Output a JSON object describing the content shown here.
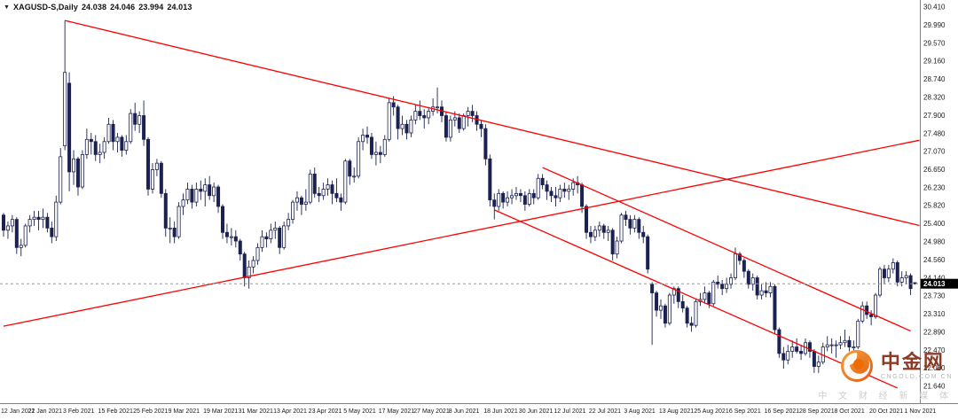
{
  "window": {
    "symbol_period": "XAGUSD-S,Daily",
    "open": "24.038",
    "high": "24.046",
    "low": "23.994",
    "close": "24.013"
  },
  "chart_data": {
    "type": "candlestick",
    "symbol": "XAGUSD-S",
    "timeframe": "Daily",
    "y_axis": {
      "min": 21.64,
      "max": 30.41,
      "labels": [
        "30.410",
        "29.990",
        "29.570",
        "29.160",
        "28.740",
        "28.320",
        "27.900",
        "27.480",
        "27.070",
        "26.650",
        "26.230",
        "25.820",
        "25.400",
        "24.980",
        "24.560",
        "24.140",
        "23.730",
        "23.310",
        "22.890",
        "22.470",
        "22.060",
        "21.640"
      ]
    },
    "x_axis": {
      "label_every_n_bars": 8,
      "labels": [
        "12 Jan 2021",
        "22 Jan 2021",
        "3 Feb 2021",
        "15 Feb 2021",
        "25 Feb 2021",
        "9 Mar 2021",
        "19 Mar 2021",
        "31 Mar 2021",
        "13 Apr 2021",
        "23 Apr 2021",
        "5 May 2021",
        "17 May 2021",
        "27 May 2021",
        "8 Jun 2021",
        "18 Jun 2021",
        "30 Jun 2021",
        "12 Jul 2021",
        "22 Jul 2021",
        "3 Aug 2021",
        "13 Aug 2021",
        "25 Aug 2021",
        "6 Sep 2021",
        "16 Sep 2021",
        "28 Sep 2021",
        "8 Oct 2021",
        "20 Oct 2021",
        "1 Nov 2021"
      ]
    },
    "bid": {
      "price": 24.013,
      "label": "24.013"
    },
    "trendlines": [
      {
        "name": "descending-resistance",
        "from": {
          "bar": 14,
          "price": 30.1
        },
        "to": {
          "bar": 209,
          "price": 25.36
        }
      },
      {
        "name": "ascending-support",
        "from": {
          "bar": 0,
          "price": 23.03
        },
        "to": {
          "bar": 209,
          "price": 27.33
        }
      },
      {
        "name": "channel-upper",
        "from": {
          "bar": 123,
          "price": 26.7
        },
        "to": {
          "bar": 207,
          "price": 22.92
        }
      },
      {
        "name": "channel-lower",
        "from": {
          "bar": 112,
          "price": 25.72
        },
        "to": {
          "bar": 204,
          "price": 21.6
        }
      }
    ],
    "candles": [
      [
        25.6,
        25.65,
        25.1,
        25.25
      ],
      [
        25.25,
        25.45,
        25.05,
        25.35
      ],
      [
        25.35,
        25.6,
        25.2,
        25.5
      ],
      [
        25.5,
        25.55,
        24.7,
        24.85
      ],
      [
        24.85,
        25.05,
        24.65,
        24.9
      ],
      [
        24.9,
        25.4,
        24.85,
        25.35
      ],
      [
        25.35,
        25.6,
        25.2,
        25.5
      ],
      [
        25.5,
        25.7,
        25.35,
        25.55
      ],
      [
        25.55,
        25.7,
        25.25,
        25.5
      ],
      [
        25.5,
        25.75,
        25.3,
        25.55
      ],
      [
        25.55,
        25.65,
        25.2,
        25.3
      ],
      [
        25.3,
        25.45,
        24.95,
        25.1
      ],
      [
        25.1,
        26.05,
        25.0,
        25.9
      ],
      [
        25.9,
        27.15,
        25.85,
        26.95
      ],
      [
        27.2,
        30.1,
        27.1,
        28.9
      ],
      [
        28.65,
        28.9,
        26.15,
        26.6
      ],
      [
        26.6,
        27.1,
        26.3,
        26.9
      ],
      [
        26.9,
        26.95,
        26.05,
        26.25
      ],
      [
        26.25,
        27.1,
        26.2,
        27.0
      ],
      [
        27.0,
        27.6,
        26.9,
        27.35
      ],
      [
        27.35,
        27.5,
        27.0,
        27.3
      ],
      [
        27.3,
        27.45,
        26.85,
        27.0
      ],
      [
        27.0,
        27.25,
        26.8,
        27.05
      ],
      [
        27.05,
        27.4,
        26.9,
        27.3
      ],
      [
        27.3,
        27.85,
        27.25,
        27.7
      ],
      [
        27.7,
        27.8,
        27.1,
        27.3
      ],
      [
        27.3,
        27.5,
        27.05,
        27.4
      ],
      [
        27.4,
        27.45,
        26.95,
        27.1
      ],
      [
        27.1,
        27.45,
        27.0,
        27.3
      ],
      [
        27.3,
        28.05,
        27.25,
        27.95
      ],
      [
        27.95,
        28.2,
        27.55,
        27.7
      ],
      [
        27.7,
        28.0,
        27.5,
        27.9
      ],
      [
        27.9,
        28.25,
        27.2,
        27.35
      ],
      [
        27.35,
        27.4,
        26.05,
        26.2
      ],
      [
        26.2,
        26.8,
        26.1,
        26.65
      ],
      [
        26.65,
        26.9,
        26.5,
        26.8
      ],
      [
        26.8,
        26.85,
        26.0,
        26.1
      ],
      [
        26.1,
        26.2,
        25.1,
        25.3
      ],
      [
        25.3,
        25.55,
        24.95,
        25.3
      ],
      [
        25.3,
        25.45,
        24.95,
        25.1
      ],
      [
        25.1,
        25.9,
        25.05,
        25.8
      ],
      [
        25.8,
        26.1,
        25.6,
        25.95
      ],
      [
        25.95,
        26.35,
        25.85,
        26.2
      ],
      [
        26.2,
        26.3,
        25.75,
        25.9
      ],
      [
        25.9,
        26.35,
        25.8,
        26.2
      ],
      [
        26.2,
        26.4,
        25.95,
        26.15
      ],
      [
        26.15,
        26.45,
        25.8,
        26.3
      ],
      [
        26.3,
        26.5,
        25.95,
        26.05
      ],
      [
        26.05,
        26.35,
        25.9,
        26.25
      ],
      [
        26.25,
        26.3,
        25.65,
        25.8
      ],
      [
        25.8,
        25.85,
        25.05,
        25.2
      ],
      [
        25.2,
        25.4,
        24.95,
        25.1
      ],
      [
        25.1,
        25.3,
        24.9,
        25.1
      ],
      [
        25.1,
        25.25,
        24.85,
        25.0
      ],
      [
        25.0,
        25.05,
        24.55,
        24.7
      ],
      [
        24.7,
        24.75,
        23.95,
        24.15
      ],
      [
        24.15,
        24.55,
        23.9,
        24.4
      ],
      [
        24.4,
        24.65,
        24.25,
        24.55
      ],
      [
        24.55,
        24.95,
        24.45,
        24.85
      ],
      [
        24.85,
        25.25,
        24.75,
        25.1
      ],
      [
        25.1,
        25.2,
        24.85,
        25.05
      ],
      [
        25.05,
        25.4,
        24.95,
        25.25
      ],
      [
        25.25,
        25.45,
        25.05,
        25.3
      ],
      [
        25.3,
        25.35,
        24.7,
        24.85
      ],
      [
        24.85,
        25.45,
        24.8,
        25.35
      ],
      [
        25.35,
        25.65,
        25.25,
        25.5
      ],
      [
        25.5,
        25.95,
        25.4,
        25.9
      ],
      [
        25.9,
        26.15,
        25.7,
        26.0
      ],
      [
        26.0,
        26.05,
        25.6,
        25.85
      ],
      [
        25.85,
        26.2,
        25.7,
        25.9
      ],
      [
        25.9,
        26.65,
        25.85,
        26.55
      ],
      [
        26.55,
        26.7,
        26.0,
        26.1
      ],
      [
        26.1,
        26.25,
        25.9,
        26.05
      ],
      [
        26.05,
        26.35,
        25.95,
        26.2
      ],
      [
        26.2,
        26.45,
        26.05,
        26.3
      ],
      [
        26.3,
        26.4,
        25.85,
        26.1
      ],
      [
        26.1,
        26.45,
        25.9,
        26.0
      ],
      [
        26.0,
        26.1,
        25.7,
        25.9
      ],
      [
        25.9,
        26.9,
        25.85,
        26.85
      ],
      [
        26.85,
        26.9,
        26.3,
        26.5
      ],
      [
        26.5,
        26.7,
        26.35,
        26.5
      ],
      [
        26.5,
        27.4,
        26.45,
        27.3
      ],
      [
        27.3,
        27.6,
        27.1,
        27.45
      ],
      [
        27.45,
        27.65,
        27.25,
        27.4
      ],
      [
        27.4,
        27.5,
        26.9,
        27.0
      ],
      [
        27.0,
        27.3,
        26.75,
        27.05
      ],
      [
        27.05,
        27.2,
        26.8,
        27.0
      ],
      [
        27.0,
        27.45,
        26.95,
        27.35
      ],
      [
        27.35,
        28.3,
        27.3,
        28.2
      ],
      [
        28.2,
        28.35,
        27.9,
        28.1
      ],
      [
        28.1,
        28.15,
        27.35,
        27.6
      ],
      [
        27.6,
        27.9,
        27.45,
        27.7
      ],
      [
        27.7,
        27.8,
        27.35,
        27.5
      ],
      [
        27.5,
        27.9,
        27.4,
        27.8
      ],
      [
        27.8,
        28.15,
        27.7,
        28.0
      ],
      [
        28.0,
        28.25,
        27.8,
        27.9
      ],
      [
        27.9,
        28.05,
        27.6,
        27.85
      ],
      [
        27.85,
        28.1,
        27.7,
        28.0
      ],
      [
        28.0,
        28.3,
        27.9,
        28.1
      ],
      [
        28.1,
        28.55,
        27.95,
        28.1
      ],
      [
        28.1,
        28.25,
        27.75,
        27.9
      ],
      [
        27.9,
        28.0,
        27.3,
        27.4
      ],
      [
        27.4,
        27.9,
        27.3,
        27.8
      ],
      [
        27.8,
        28.0,
        27.65,
        27.85
      ],
      [
        27.85,
        27.95,
        27.5,
        27.6
      ],
      [
        27.6,
        27.95,
        27.55,
        27.9
      ],
      [
        27.9,
        28.1,
        27.65,
        28.0
      ],
      [
        28.0,
        28.15,
        27.75,
        27.9
      ],
      [
        27.9,
        28.0,
        27.55,
        27.7
      ],
      [
        27.7,
        27.8,
        27.4,
        27.6
      ],
      [
        27.6,
        27.7,
        26.75,
        26.9
      ],
      [
        26.9,
        27.0,
        25.8,
        25.95
      ],
      [
        25.95,
        26.1,
        25.5,
        25.8
      ],
      [
        25.8,
        26.2,
        25.7,
        26.1
      ],
      [
        26.1,
        26.15,
        25.75,
        25.9
      ],
      [
        25.9,
        26.15,
        25.8,
        26.0
      ],
      [
        26.0,
        26.2,
        25.85,
        26.05
      ],
      [
        26.05,
        26.25,
        25.95,
        26.1
      ],
      [
        26.1,
        26.2,
        25.9,
        26.05
      ],
      [
        26.05,
        26.15,
        25.7,
        25.85
      ],
      [
        25.85,
        26.2,
        25.8,
        26.1
      ],
      [
        26.1,
        26.2,
        25.85,
        26.0
      ],
      [
        26.0,
        26.55,
        25.95,
        26.45
      ],
      [
        26.45,
        26.55,
        26.2,
        26.3
      ],
      [
        26.3,
        26.4,
        25.95,
        26.15
      ],
      [
        26.15,
        26.25,
        25.9,
        26.05
      ],
      [
        26.05,
        26.25,
        25.8,
        26.0
      ],
      [
        26.0,
        26.3,
        25.9,
        26.2
      ],
      [
        26.2,
        26.35,
        26.0,
        26.15
      ],
      [
        26.15,
        26.3,
        25.95,
        26.2
      ],
      [
        26.2,
        26.45,
        26.05,
        26.35
      ],
      [
        26.35,
        26.5,
        26.1,
        26.3
      ],
      [
        26.3,
        26.35,
        25.65,
        25.8
      ],
      [
        25.8,
        25.85,
        25.05,
        25.2
      ],
      [
        25.2,
        25.35,
        24.95,
        25.1
      ],
      [
        25.1,
        25.35,
        25.0,
        25.25
      ],
      [
        25.25,
        25.45,
        25.1,
        25.35
      ],
      [
        25.35,
        25.4,
        25.05,
        25.2
      ],
      [
        25.2,
        25.35,
        25.0,
        25.25
      ],
      [
        25.25,
        25.3,
        24.55,
        24.7
      ],
      [
        24.7,
        25.1,
        24.6,
        25.0
      ],
      [
        25.0,
        25.65,
        24.95,
        25.6
      ],
      [
        25.6,
        25.7,
        25.35,
        25.5
      ],
      [
        25.5,
        25.6,
        25.15,
        25.3
      ],
      [
        25.3,
        25.6,
        25.2,
        25.5
      ],
      [
        25.5,
        25.55,
        25.05,
        25.2
      ],
      [
        25.2,
        25.35,
        24.95,
        25.1
      ],
      [
        25.1,
        25.15,
        24.25,
        24.35
      ],
      [
        24.0,
        24.05,
        22.6,
        23.8
      ],
      [
        23.8,
        23.85,
        23.25,
        23.4
      ],
      [
        23.4,
        23.65,
        23.2,
        23.5
      ],
      [
        23.5,
        23.55,
        23.0,
        23.1
      ],
      [
        23.1,
        23.8,
        23.05,
        23.75
      ],
      [
        23.75,
        23.95,
        23.55,
        23.9
      ],
      [
        23.9,
        23.95,
        23.45,
        23.6
      ],
      [
        23.6,
        23.75,
        23.35,
        23.45
      ],
      [
        23.45,
        23.5,
        23.0,
        23.1
      ],
      [
        23.1,
        23.25,
        22.9,
        23.05
      ],
      [
        23.05,
        23.65,
        23.0,
        23.6
      ],
      [
        23.6,
        23.8,
        23.5,
        23.65
      ],
      [
        23.65,
        23.95,
        23.55,
        23.8
      ],
      [
        23.8,
        23.85,
        23.45,
        23.55
      ],
      [
        23.55,
        24.1,
        23.5,
        24.05
      ],
      [
        24.05,
        24.2,
        23.9,
        24.0
      ],
      [
        24.0,
        24.1,
        23.75,
        23.9
      ],
      [
        23.9,
        24.15,
        23.8,
        24.0
      ],
      [
        24.0,
        24.25,
        23.9,
        24.15
      ],
      [
        24.15,
        24.85,
        24.1,
        24.7
      ],
      [
        24.7,
        24.75,
        24.45,
        24.55
      ],
      [
        24.55,
        24.6,
        24.15,
        24.3
      ],
      [
        24.3,
        24.35,
        23.9,
        24.0
      ],
      [
        24.0,
        24.25,
        23.85,
        24.15
      ],
      [
        24.15,
        24.2,
        23.65,
        23.75
      ],
      [
        23.75,
        24.0,
        23.65,
        23.85
      ],
      [
        23.85,
        24.05,
        23.7,
        23.8
      ],
      [
        23.8,
        24.05,
        23.7,
        23.95
      ],
      [
        23.95,
        24.0,
        22.85,
        22.95
      ],
      [
        22.95,
        23.0,
        22.3,
        22.4
      ],
      [
        22.4,
        22.55,
        22.05,
        22.25
      ],
      [
        22.25,
        22.6,
        22.15,
        22.45
      ],
      [
        22.45,
        22.7,
        22.3,
        22.55
      ],
      [
        22.55,
        22.75,
        22.4,
        22.45
      ],
      [
        22.45,
        22.6,
        22.25,
        22.4
      ],
      [
        22.4,
        22.75,
        22.35,
        22.65
      ],
      [
        22.65,
        22.7,
        22.3,
        22.45
      ],
      [
        22.45,
        22.5,
        21.95,
        22.1
      ],
      [
        22.1,
        22.35,
        21.95,
        22.2
      ],
      [
        22.2,
        22.65,
        22.15,
        22.55
      ],
      [
        22.55,
        22.8,
        22.45,
        22.6
      ],
      [
        22.6,
        22.75,
        22.4,
        22.6
      ],
      [
        22.6,
        22.7,
        22.3,
        22.6
      ],
      [
        22.6,
        22.8,
        22.5,
        22.65
      ],
      [
        22.65,
        22.95,
        22.55,
        22.7
      ],
      [
        22.7,
        22.8,
        22.45,
        22.55
      ],
      [
        22.55,
        22.7,
        22.4,
        22.55
      ],
      [
        22.55,
        23.2,
        22.5,
        23.15
      ],
      [
        23.15,
        23.6,
        23.1,
        23.5
      ],
      [
        23.5,
        23.6,
        23.2,
        23.3
      ],
      [
        23.3,
        23.4,
        23.05,
        23.25
      ],
      [
        23.25,
        23.8,
        23.2,
        23.75
      ],
      [
        23.75,
        24.4,
        23.7,
        24.35
      ],
      [
        24.35,
        24.45,
        24.0,
        24.15
      ],
      [
        24.15,
        24.45,
        24.05,
        24.35
      ],
      [
        24.35,
        24.6,
        24.25,
        24.5
      ],
      [
        24.5,
        24.55,
        23.95,
        24.05
      ],
      [
        24.05,
        24.3,
        23.95,
        24.15
      ],
      [
        24.15,
        24.3,
        24.0,
        24.2
      ],
      [
        24.2,
        24.25,
        23.75,
        23.9
      ],
      [
        24.038,
        24.046,
        23.994,
        24.013
      ]
    ],
    "colors": {
      "background": "#ffffff",
      "candle": "#1b2150",
      "candle_up_fill": "#ffffff",
      "candle_down_fill": "#1b2150",
      "trendline": "#ff0000",
      "bid_line": "#9a9a9a",
      "bid_tag_bg": "#000000",
      "bid_tag_text": "#ffffff",
      "axis_text": "#1a1a1a",
      "axis_line": "#808080",
      "brand_red": "#8c3b27",
      "brand_orange": "#ed6d00",
      "watermark_gray": "#cdcdcd"
    }
  },
  "watermark": {
    "brand": "中金网",
    "domain": "CNGOLD.COM.CN",
    "tagline": "中 文 财 经 新 媒 体"
  }
}
